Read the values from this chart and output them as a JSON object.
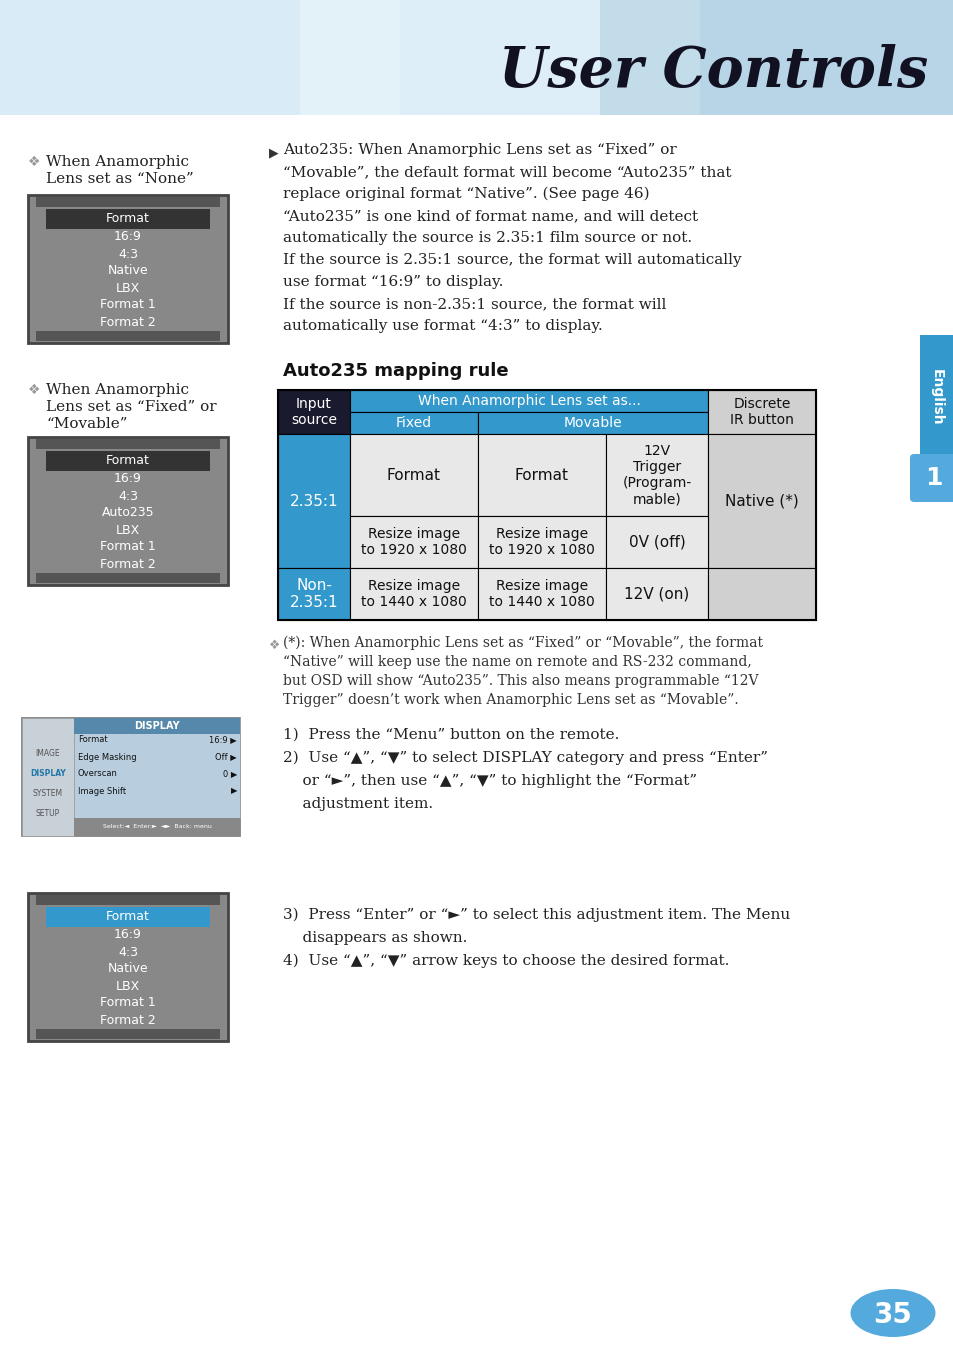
{
  "title": "User Controls",
  "bg_color": "#ffffff",
  "table_title": "Auto235 mapping rule",
  "main_text_lines": [
    "Auto235: When Anamorphic Lens set as “Fixed” or",
    "“Movable”, the default format will become “Auto235” that",
    "replace original format “Native”. (See page 46)",
    "“Auto235” is one kind of format name, and will detect",
    "automatically the source is 2.35:1 film source or not.",
    "If the source is 2.35:1 source, the format will automatically",
    "use format “16:9” to display.",
    "If the source is non-2.35:1 source, the format will",
    "automatically use format “4:3” to display."
  ],
  "footnote_lines": [
    "(*): When Anamorphic Lens set as “Fixed” or “Movable”, the format",
    "“Native” will keep use the name on remote and RS-232 command,",
    "but OSD will show “Auto235”. This also means programmable “12V",
    "Trigger” doesn’t work when Anamorphic Lens set as “Movable”."
  ],
  "left_label1_lines": [
    "When Anamorphic",
    "Lens set as “None”"
  ],
  "left_menu1": [
    "Format",
    "16:9",
    "4:3",
    "Native",
    "LBX",
    "Format 1",
    "Format 2"
  ],
  "left_label2_lines": [
    "When Anamorphic",
    "Lens set as “Fixed” or",
    "“Movable”"
  ],
  "left_menu2": [
    "Format",
    "16:9",
    "4:3",
    "Auto235",
    "LBX",
    "Format 1",
    "Format 2"
  ],
  "steps_text": [
    "1)  Press the “Menu” button on the remote.",
    "2)  Use “▲”, “▼” to select DISPLAY category and press “Enter”",
    "    or “►”, then use “▲”, “▼” to highlight the “Format”",
    "    adjustment item."
  ],
  "steps_text2": [
    "3)  Press “Enter” or “►” to select this adjustment item. The Menu",
    "    disappears as shown.",
    "4)  Use “▲”, “▼” arrow keys to choose the desired format."
  ],
  "page_number": "35",
  "english_label": "English",
  "blue_header": "#3399cc",
  "blue_cell": "#3399cc",
  "dark_header": "#1a1a2e",
  "light_cell": "#e8e8e8",
  "disc_cell": "#d0d0d0"
}
